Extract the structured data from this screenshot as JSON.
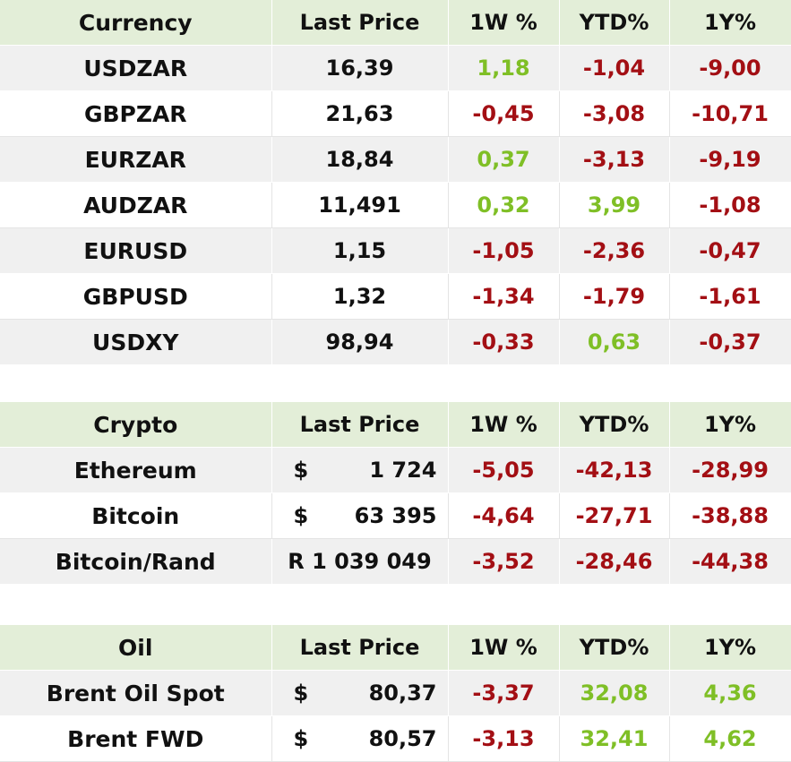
{
  "currency": {
    "headers": [
      "Currency",
      "Last Price",
      "1W %",
      "YTD%",
      "1Y%"
    ],
    "rows": [
      {
        "name": "USDZAR",
        "price": "16,39",
        "w1": "1,18",
        "ytd": "-1,04",
        "y1": "-9,00"
      },
      {
        "name": "GBPZAR",
        "price": "21,63",
        "w1": "-0,45",
        "ytd": "-3,08",
        "y1": "-10,71"
      },
      {
        "name": "EURZAR",
        "price": "18,84",
        "w1": "0,37",
        "ytd": "-3,13",
        "y1": "-9,19"
      },
      {
        "name": "AUDZAR",
        "price": "11,491",
        "w1": "0,32",
        "ytd": "3,99",
        "y1": "-1,08"
      },
      {
        "name": "EURUSD",
        "price": "1,15",
        "w1": "-1,05",
        "ytd": "-2,36",
        "y1": "-0,47"
      },
      {
        "name": "GBPUSD",
        "price": "1,32",
        "w1": "-1,34",
        "ytd": "-1,79",
        "y1": "-1,61"
      },
      {
        "name": "USDXY",
        "price": "98,94",
        "w1": "-0,33",
        "ytd": "0,63",
        "y1": "-0,37"
      }
    ]
  },
  "crypto": {
    "headers": [
      "Crypto",
      "Last Price",
      "1W %",
      "YTD%",
      "1Y%"
    ],
    "rows": [
      {
        "name": "Ethereum",
        "currency": "$",
        "price": "1 724",
        "w1": "-5,05",
        "ytd": "-42,13",
        "y1": "-28,99"
      },
      {
        "name": "Bitcoin",
        "currency": "$",
        "price": "63 395",
        "w1": "-4,64",
        "ytd": "-27,71",
        "y1": "-38,88"
      },
      {
        "name": "Bitcoin/Rand",
        "currency": "",
        "price": "R 1 039 049",
        "w1": "-3,52",
        "ytd": "-28,46",
        "y1": "-44,38"
      }
    ]
  },
  "oil": {
    "headers": [
      "Oil",
      "Last Price",
      "1W %",
      "YTD%",
      "1Y%"
    ],
    "rows": [
      {
        "name": "Brent Oil Spot",
        "currency": "$",
        "price": "80,37",
        "w1": "-3,37",
        "ytd": "32,08",
        "y1": "4,36"
      },
      {
        "name": "Brent FWD",
        "currency": "$",
        "price": "80,57",
        "w1": "-3,13",
        "ytd": "32,41",
        "y1": "4,62"
      }
    ]
  },
  "colors": {
    "header_bg": "#e3eed8",
    "stripe_bg": "#f0f0f0",
    "positive": "#7fbf26",
    "negative": "#a30f14"
  }
}
